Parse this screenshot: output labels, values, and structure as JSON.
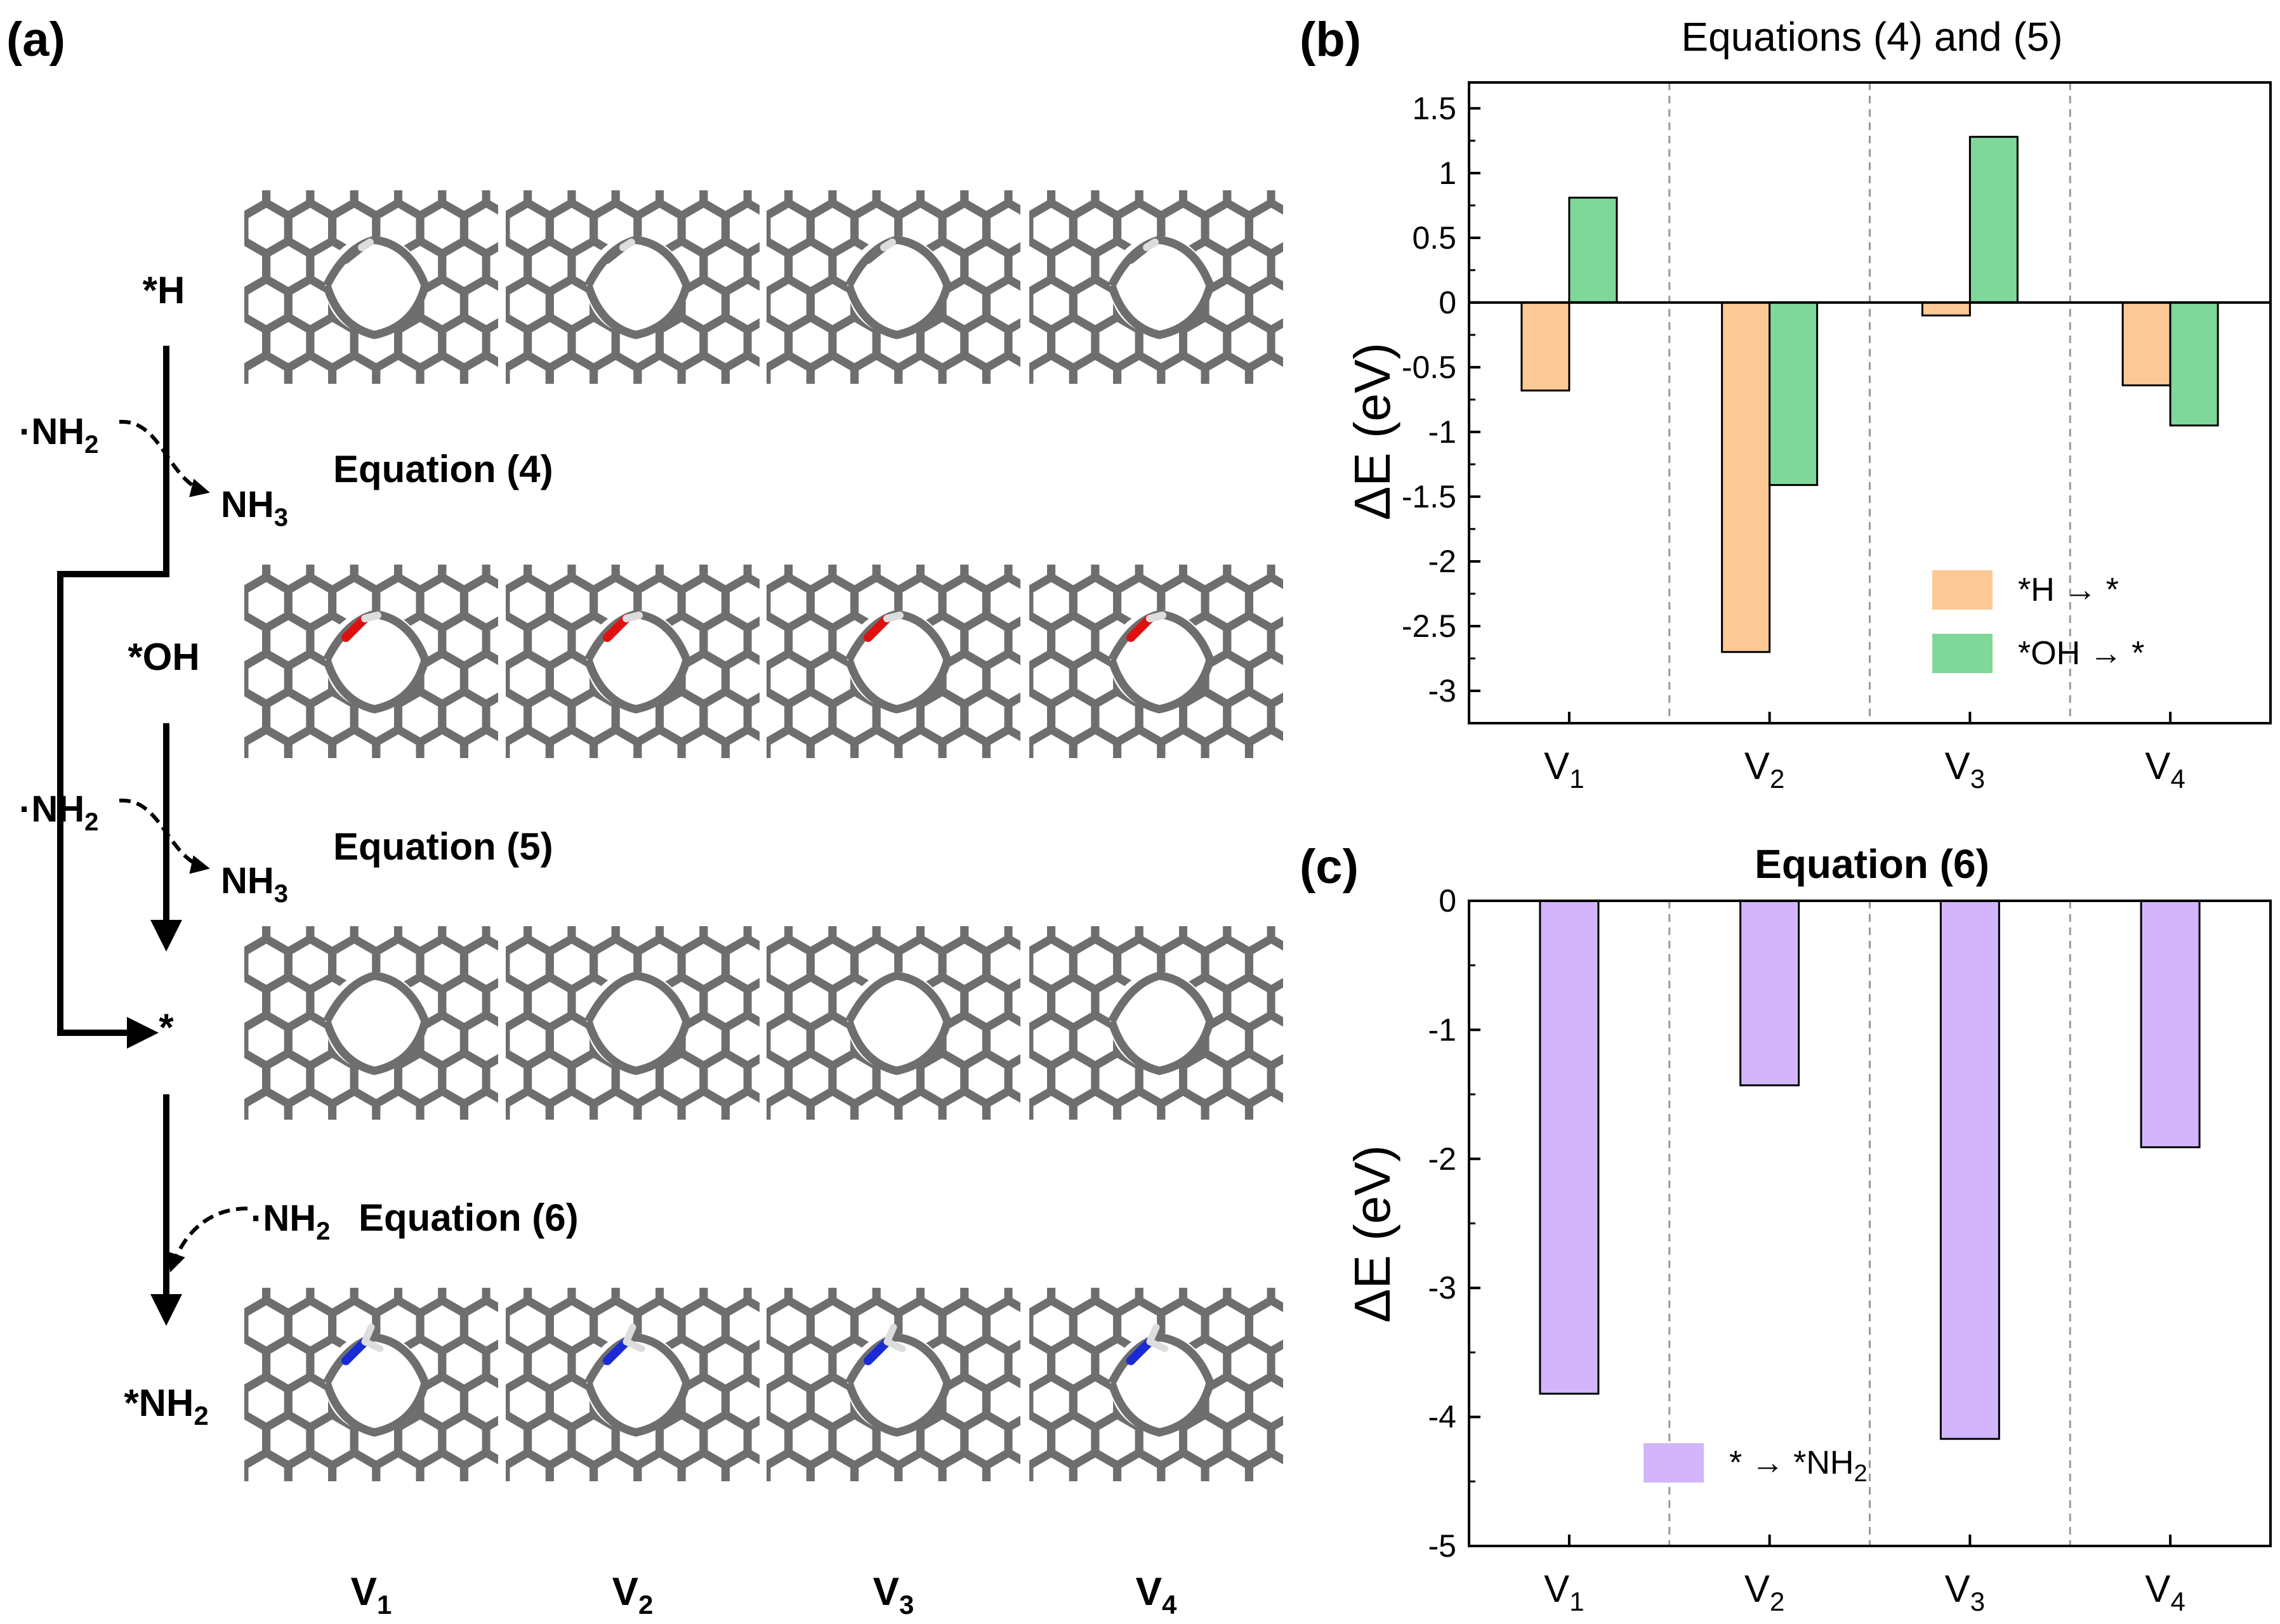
{
  "panel_a": {
    "label": "(a)",
    "states": [
      {
        "name": "*H",
        "main": "*H",
        "sub": ""
      },
      {
        "name": "*OH",
        "main": "*OH",
        "sub": ""
      },
      {
        "name": "*",
        "main": "*",
        "sub": ""
      },
      {
        "name": "*NH2",
        "main": "*NH",
        "sub": "2"
      }
    ],
    "reagents": [
      {
        "main": "·NH",
        "sub": "2"
      },
      {
        "main": "·NH",
        "sub": "2"
      },
      {
        "main": "·NH",
        "sub": "2"
      }
    ],
    "products": [
      {
        "main": "NH",
        "sub": "3"
      },
      {
        "main": "NH",
        "sub": "3"
      }
    ],
    "equations": [
      "Equation (4)",
      "Equation (5)",
      "Equation (6)"
    ],
    "columns": [
      {
        "main": "V",
        "sub": "1"
      },
      {
        "main": "V",
        "sub": "2"
      },
      {
        "main": "V",
        "sub": "3"
      },
      {
        "main": "V",
        "sub": "4"
      }
    ],
    "atom_colors": {
      "carbon": "#6e6e6e",
      "oxygen": "#e01010",
      "hydrogen": "#f2f2f2",
      "nitrogen": "#1a2bd6"
    }
  },
  "chart_data": [
    {
      "panel": "(b)",
      "type": "bar",
      "title": "Equations (4) and (5)",
      "xlabel": "",
      "ylabel": "ΔE (eV)",
      "categories": [
        {
          "main": "V",
          "sub": "1"
        },
        {
          "main": "V",
          "sub": "2"
        },
        {
          "main": "V",
          "sub": "3"
        },
        {
          "main": "V",
          "sub": "4"
        }
      ],
      "series": [
        {
          "name": "*H → *",
          "color": "#fbc896",
          "values": [
            -0.68,
            -2.7,
            -0.1,
            -0.64
          ]
        },
        {
          "name": "*OH → *",
          "color": "#7ed89a",
          "values": [
            0.81,
            -1.41,
            1.28,
            -0.95
          ]
        }
      ],
      "ylim": [
        -3.25,
        1.7
      ],
      "yticks": [
        1.5,
        1,
        0.5,
        0,
        -0.5,
        -1,
        -1.5,
        -2,
        -2.5,
        -3
      ],
      "ytick_labels": [
        "1.5",
        "1",
        "0.5",
        "0",
        "-0.5",
        "-1",
        "-1.5",
        "-2",
        "-2.5",
        "-3"
      ],
      "legend": "bottom-right",
      "grid": "dashed vertical separators"
    },
    {
      "panel": "(c)",
      "type": "bar",
      "title": "Equation (6)",
      "xlabel": "",
      "ylabel": "ΔE (eV)",
      "categories": [
        {
          "main": "V",
          "sub": "1"
        },
        {
          "main": "V",
          "sub": "2"
        },
        {
          "main": "V",
          "sub": "3"
        },
        {
          "main": "V",
          "sub": "4"
        }
      ],
      "series": [
        {
          "name": "* → *NH2",
          "label_main": "* → *NH",
          "label_sub": "2",
          "color": "#d2b5fb",
          "values": [
            -3.82,
            -1.43,
            -4.17,
            -1.91
          ]
        }
      ],
      "ylim": [
        -5,
        0
      ],
      "yticks": [
        0,
        -1,
        -2,
        -3,
        -4,
        -5
      ],
      "ytick_labels": [
        "0",
        "-1",
        "-2",
        "-3",
        "-4",
        "-5"
      ],
      "legend": "bottom-left",
      "grid": "dashed vertical separators"
    }
  ]
}
